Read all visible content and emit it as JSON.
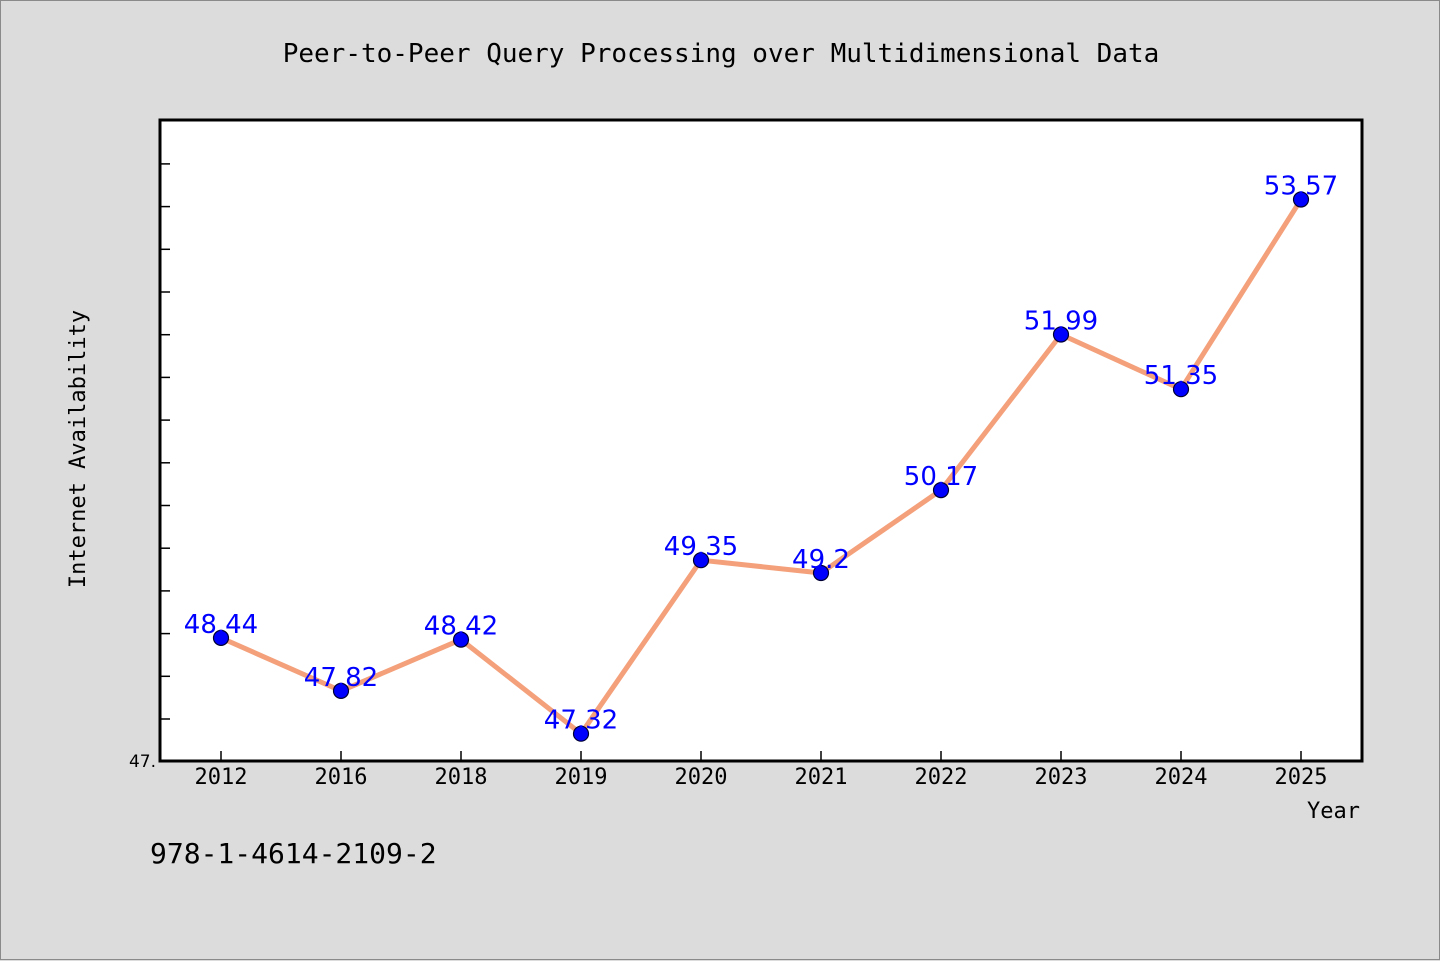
{
  "chart_data": {
    "type": "line",
    "title": "Peer-to-Peer Query Processing over Multidimensional Data",
    "xlabel": "Year",
    "ylabel": "Internet Availability",
    "categories": [
      "2012",
      "2016",
      "2018",
      "2019",
      "2020",
      "2021",
      "2022",
      "2023",
      "2024",
      "2025"
    ],
    "values": [
      48.44,
      47.82,
      48.42,
      47.32,
      49.35,
      49.2,
      50.17,
      51.99,
      51.35,
      53.57
    ],
    "data_labels": [
      "48.44",
      "47.82",
      "48.42",
      "47.32",
      "49.35",
      "49.2",
      "50.17",
      "51.99",
      "51.35",
      "53.57"
    ],
    "ylim": [
      47.0,
      54.5
    ],
    "y_tick_label": "47.",
    "line_color": "#f4a07a",
    "marker_color": "#0000ff",
    "label_color": "#0000ff",
    "grid": false,
    "footnote": "978-1-4614-2109-2"
  }
}
